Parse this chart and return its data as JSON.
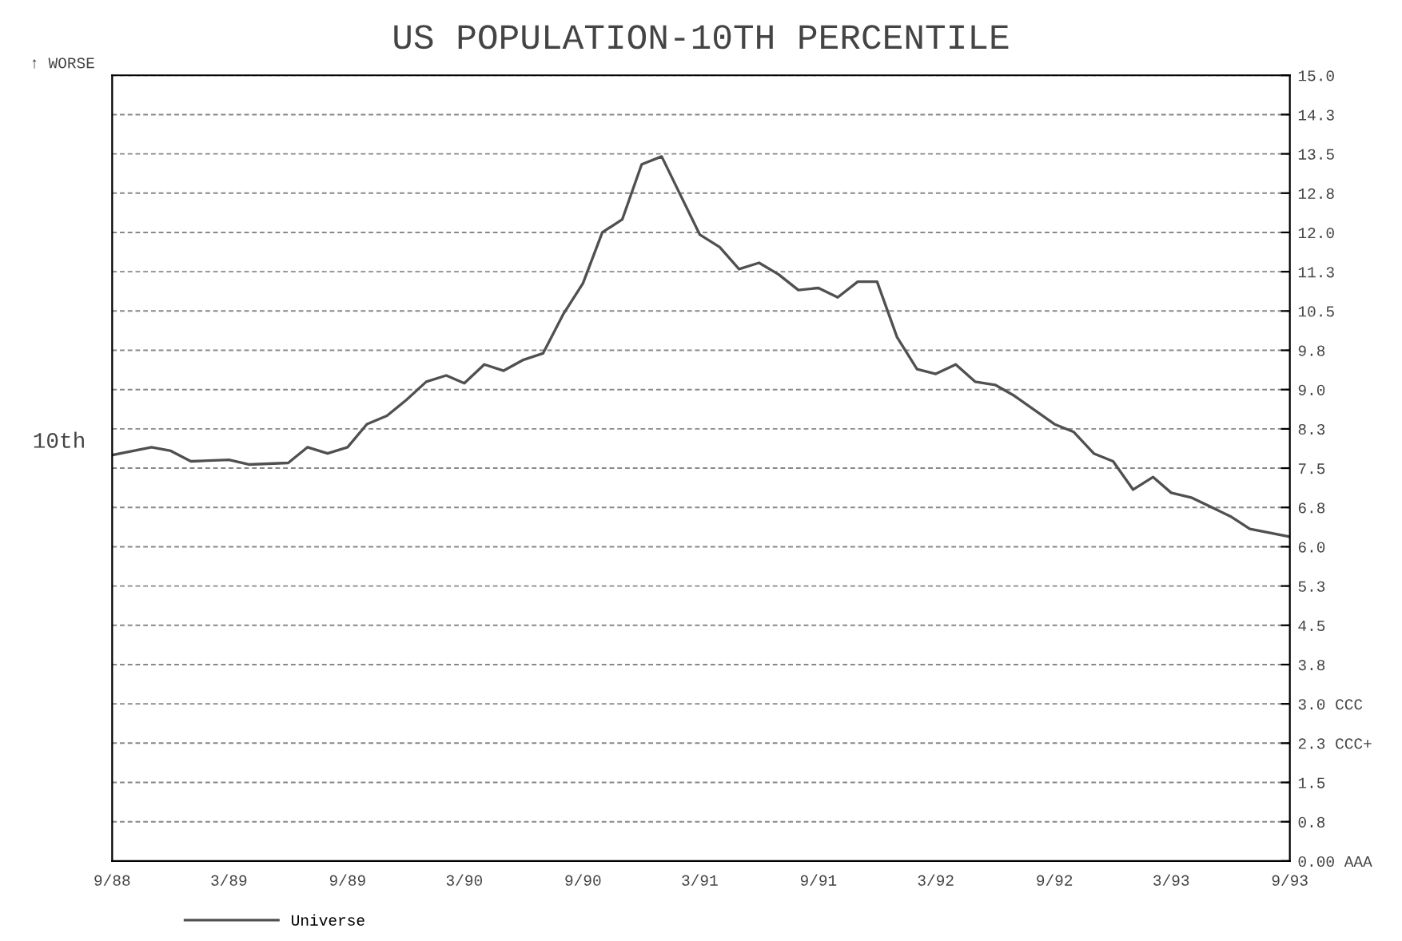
{
  "chart_data": {
    "type": "line",
    "title": "US POPULATION-10TH PERCENTILE",
    "ylabel": "10th",
    "annotations": [
      "↑ WORSE"
    ],
    "x": [
      "1988-09",
      "1988-11",
      "1988-12",
      "1989-01",
      "1989-03",
      "1989-04",
      "1989-06",
      "1989-07",
      "1989-08",
      "1989-09",
      "1989-10",
      "1989-11",
      "1989-12",
      "1990-01",
      "1990-02",
      "1990-03",
      "1990-04",
      "1990-05",
      "1990-06",
      "1990-07",
      "1990-08",
      "1990-09",
      "1990-10",
      "1990-11",
      "1990-12",
      "1991-01",
      "1991-03",
      "1991-04",
      "1991-05",
      "1991-06",
      "1991-07",
      "1991-08",
      "1991-09",
      "1991-10",
      "1991-11",
      "1991-12",
      "1992-01",
      "1992-02",
      "1992-03",
      "1992-04",
      "1992-05",
      "1992-06",
      "1992-07",
      "1992-09",
      "1992-10",
      "1992-11",
      "1992-12",
      "1993-01",
      "1993-02",
      "1993-03",
      "1993-04",
      "1993-06",
      "1993-07",
      "1993-09"
    ],
    "series": [
      {
        "name": "Universe",
        "color": "#505050",
        "values": [
          7.75,
          7.9,
          7.83,
          7.63,
          7.66,
          7.57,
          7.6,
          7.9,
          7.78,
          7.9,
          8.34,
          8.5,
          8.8,
          9.15,
          9.27,
          9.12,
          9.48,
          9.36,
          9.57,
          9.69,
          10.43,
          11.03,
          12.0,
          12.25,
          13.3,
          13.45,
          11.96,
          11.72,
          11.3,
          11.42,
          11.2,
          10.9,
          10.94,
          10.76,
          11.06,
          11.06,
          10.0,
          9.39,
          9.3,
          9.48,
          9.15,
          9.09,
          8.88,
          8.34,
          8.19,
          7.78,
          7.63,
          7.09,
          7.33,
          7.03,
          6.94,
          6.58,
          6.34,
          6.19
        ]
      }
    ],
    "xlim": [
      "1988-09",
      "1993-09"
    ],
    "xticks": [
      {
        "value": "1988-09",
        "label": "9/88"
      },
      {
        "value": "1989-03",
        "label": "3/89"
      },
      {
        "value": "1989-09",
        "label": "9/89"
      },
      {
        "value": "1990-03",
        "label": "3/90"
      },
      {
        "value": "1990-09",
        "label": "9/90"
      },
      {
        "value": "1991-03",
        "label": "3/91"
      },
      {
        "value": "1991-09",
        "label": "9/91"
      },
      {
        "value": "1992-03",
        "label": "3/92"
      },
      {
        "value": "1992-09",
        "label": "9/92"
      },
      {
        "value": "1993-03",
        "label": "3/93"
      },
      {
        "value": "1993-09",
        "label": "9/93"
      }
    ],
    "ylim": [
      0,
      15
    ],
    "yticks": [
      {
        "value": 0,
        "label": "0.00 AAA"
      },
      {
        "value": 0.75,
        "label": "0.8"
      },
      {
        "value": 1.5,
        "label": "1.5"
      },
      {
        "value": 2.25,
        "label": "2.3 CCC+"
      },
      {
        "value": 3.0,
        "label": "3.0 CCC"
      },
      {
        "value": 3.75,
        "label": "3.8"
      },
      {
        "value": 4.5,
        "label": "4.5"
      },
      {
        "value": 5.25,
        "label": "5.3"
      },
      {
        "value": 6.0,
        "label": "6.0"
      },
      {
        "value": 6.75,
        "label": "6.8"
      },
      {
        "value": 7.5,
        "label": "7.5"
      },
      {
        "value": 8.25,
        "label": "8.3"
      },
      {
        "value": 9.0,
        "label": "9.0"
      },
      {
        "value": 9.75,
        "label": "9.8"
      },
      {
        "value": 10.5,
        "label": "10.5"
      },
      {
        "value": 11.25,
        "label": "11.3"
      },
      {
        "value": 12.0,
        "label": "12.0"
      },
      {
        "value": 12.75,
        "label": "12.8"
      },
      {
        "value": 13.5,
        "label": "13.5"
      },
      {
        "value": 14.25,
        "label": "14.3"
      },
      {
        "value": 15.0,
        "label": "15.0"
      }
    ],
    "grid": "y",
    "legend": "bottom left",
    "marker": "none",
    "line_style": "solid"
  }
}
